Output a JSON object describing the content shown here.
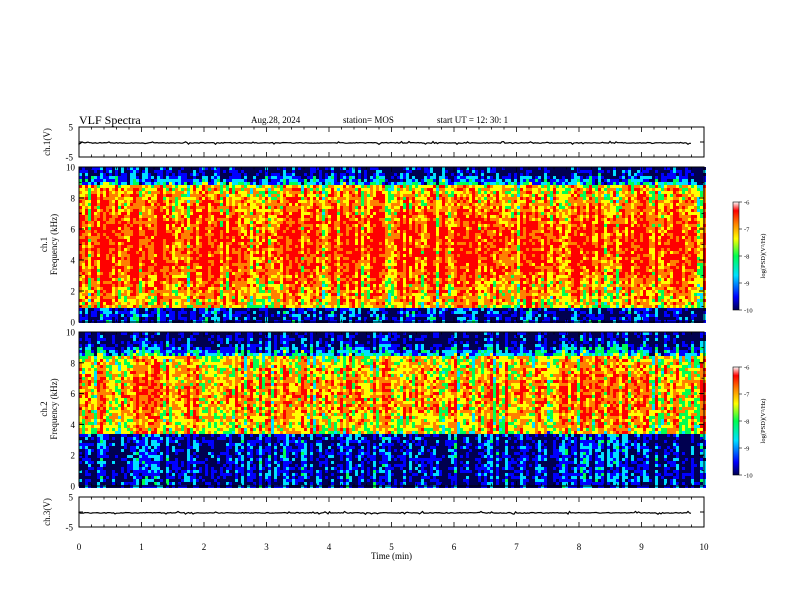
{
  "header": {
    "title": "VLF Spectra",
    "date": "Aug.28, 2024",
    "station": "station= MOS",
    "start": "start  UT =   12: 30: 1"
  },
  "chart_data": [
    {
      "type": "line",
      "panel": "ch1-waveform",
      "ylabel": "ch.1(V)",
      "ylim": [
        -5,
        5
      ],
      "yticks": [
        "5",
        "-5"
      ],
      "baseline": -0.3
    },
    {
      "type": "heatmap",
      "panel": "ch1-spectrogram",
      "ylabel_top": "ch.1",
      "ylabel": "Frequency (kHz)",
      "ylim": [
        0,
        10
      ],
      "yticks": [
        "0",
        "2",
        "4",
        "6",
        "8",
        "10"
      ],
      "colorbar": {
        "label": "log(PSD)(V²/Hz)",
        "range": [
          -10,
          -6
        ],
        "ticks": [
          "-6",
          "-7",
          "-8",
          "-9",
          "-10"
        ]
      },
      "band_kHz": [
        1.0,
        8.8
      ]
    },
    {
      "type": "heatmap",
      "panel": "ch2-spectrogram",
      "ylabel_top": "ch.2",
      "ylabel": "Frequency (kHz)",
      "ylim": [
        0,
        10
      ],
      "yticks": [
        "0",
        "2",
        "4",
        "6",
        "8",
        "10"
      ],
      "colorbar": {
        "label": "log(PSD)(V²/Hz)",
        "range": [
          -10,
          -6
        ],
        "ticks": [
          "-6",
          "-7",
          "-8",
          "-9",
          "-10"
        ]
      },
      "band_kHz": [
        3.5,
        8.5
      ]
    },
    {
      "type": "line",
      "panel": "ch3-waveform",
      "ylabel": "ch.3(V)",
      "ylim": [
        -5,
        5
      ],
      "yticks": [
        "5",
        "-5"
      ],
      "baseline": -0.3
    }
  ],
  "xaxis": {
    "label": "Time  (min)",
    "xlim": [
      0,
      10
    ],
    "ticks": [
      "0",
      "1",
      "2",
      "3",
      "4",
      "5",
      "6",
      "7",
      "8",
      "9",
      "10"
    ]
  },
  "colors": {
    "colormap": [
      "#000050",
      "#0000ff",
      "#00e0ff",
      "#00ff50",
      "#ffff00",
      "#ff8000",
      "#ff0000",
      "#ffffff"
    ]
  }
}
